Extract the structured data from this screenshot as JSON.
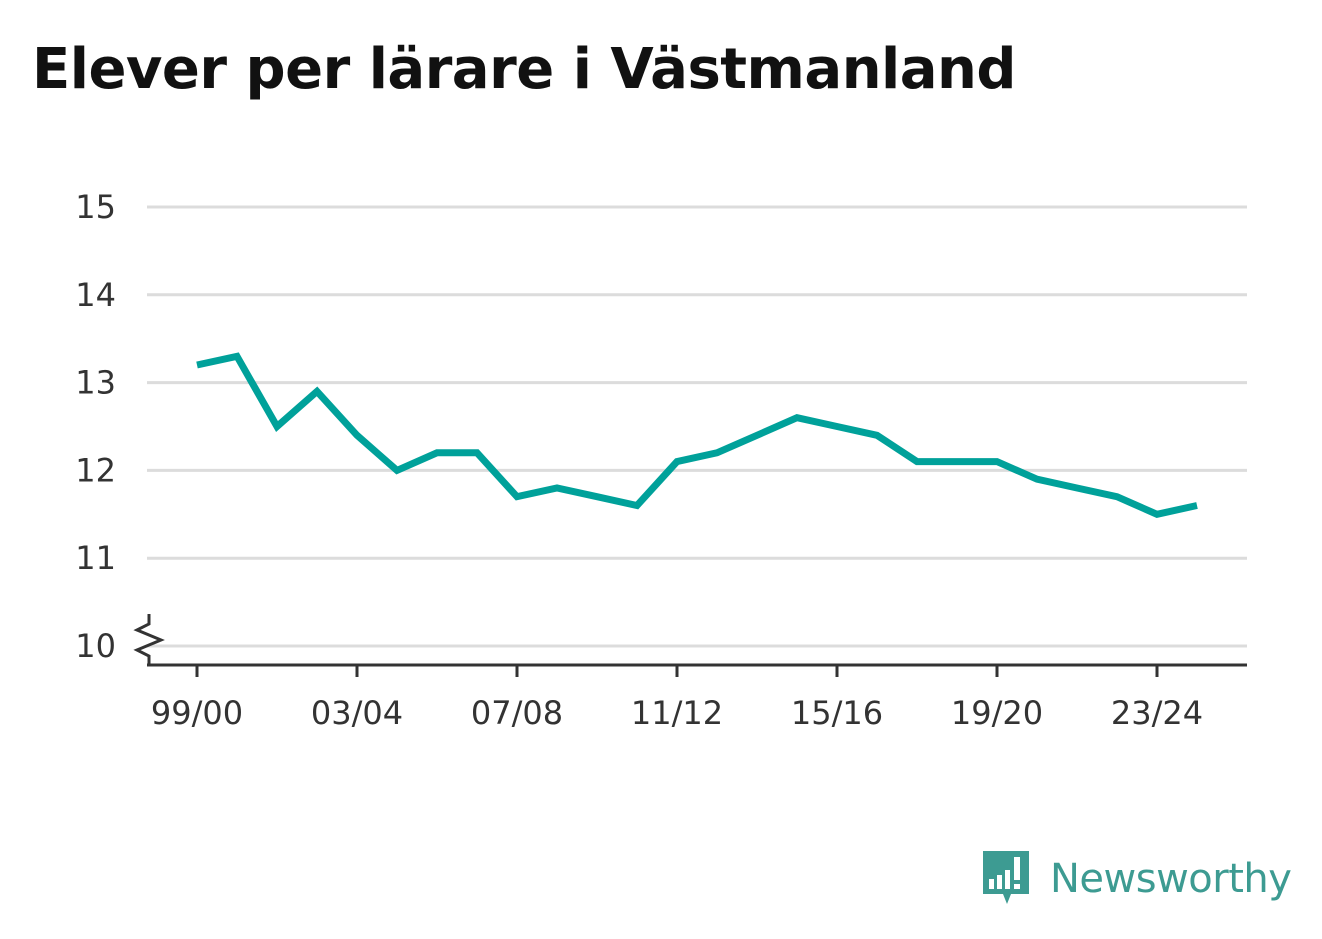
{
  "title": "Elever per lärare i Västmanland",
  "brand": {
    "name": "Newsworthy",
    "icon": "newsworthy-logo-icon",
    "color": "#3d9b92"
  },
  "chart_data": {
    "type": "line",
    "title": "Elever per lärare i Västmanland",
    "xlabel": "",
    "ylabel": "",
    "x": [
      "99/00",
      "00/01",
      "01/02",
      "02/03",
      "03/04",
      "04/05",
      "05/06",
      "06/07",
      "07/08",
      "08/09",
      "09/10",
      "10/11",
      "11/12",
      "12/13",
      "13/14",
      "14/15",
      "15/16",
      "16/17",
      "17/18",
      "18/19",
      "19/20",
      "20/21",
      "21/22",
      "22/23",
      "23/24",
      "24/25"
    ],
    "xticks": [
      "99/00",
      "03/04",
      "07/08",
      "11/12",
      "15/16",
      "19/20",
      "23/24"
    ],
    "series": [
      {
        "values": [
          13.2,
          13.3,
          12.5,
          12.9,
          12.4,
          12.0,
          12.2,
          12.2,
          11.7,
          11.8,
          11.7,
          11.6,
          12.1,
          12.2,
          12.4,
          12.6,
          12.5,
          12.4,
          12.1,
          12.1,
          12.1,
          11.9,
          11.8,
          11.7,
          11.5,
          11.6
        ],
        "color": "#00a19a"
      }
    ],
    "yticks": [
      10,
      11,
      12,
      13,
      14,
      15
    ],
    "ylim": [
      10,
      15
    ],
    "axis_break": true,
    "grid": true,
    "legend": "none"
  }
}
